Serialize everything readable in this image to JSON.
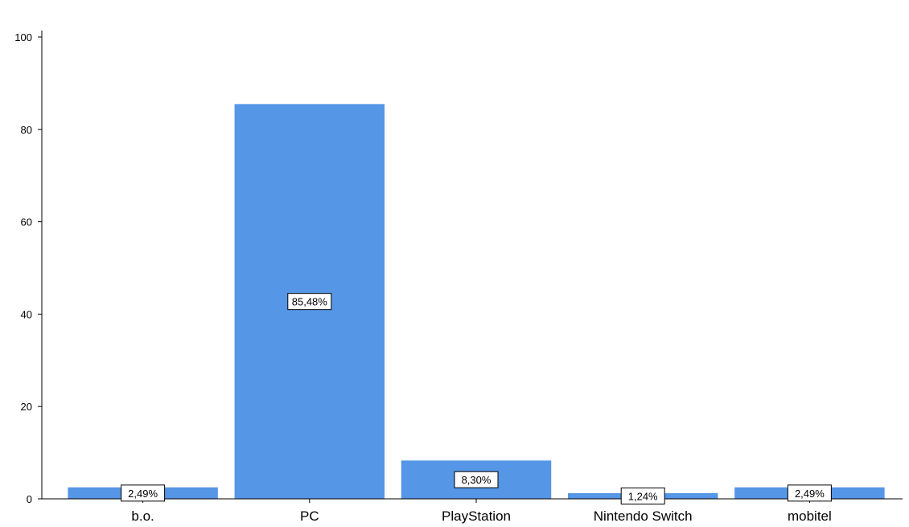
{
  "chart_data": {
    "type": "bar",
    "title": "",
    "xlabel": "",
    "ylabel": "",
    "categories": [
      "b.o.",
      "PC",
      "PlayStation",
      "Nintendo Switch",
      "mobitel"
    ],
    "values": [
      2.49,
      85.48,
      8.3,
      1.24,
      2.49
    ],
    "data_labels": [
      "2,49%",
      "85,48%",
      "8,30%",
      "1,24%",
      "2,49%"
    ],
    "ylim": [
      0,
      100
    ],
    "yticks": [
      0,
      20,
      40,
      60,
      80,
      100
    ],
    "grid": false,
    "bar_color": "#5596e6"
  }
}
